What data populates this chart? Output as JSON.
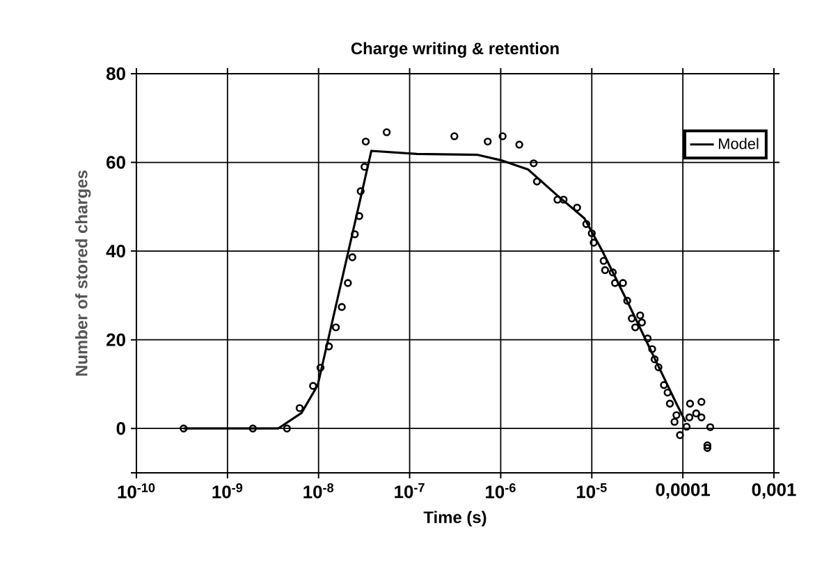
{
  "chart_data": {
    "type": "scatter",
    "title": "Charge writing & retention",
    "xlabel": "Time (s)",
    "ylabel": "Number of stored charges",
    "log": "x",
    "grid": true,
    "legend": "top right",
    "xlim": [
      1e-10,
      0.001
    ],
    "ylim": [
      -10,
      80
    ],
    "xticks": [
      {
        "value": 1e-10,
        "label": "10$^{-10}$"
      },
      {
        "value": 1e-09,
        "label": "10$^{-9}$"
      },
      {
        "value": 1e-08,
        "label": "10$^{-8}$"
      },
      {
        "value": 1e-07,
        "label": "10$^{-7}$"
      },
      {
        "value": 1e-06,
        "label": "10$^{-6}$"
      },
      {
        "value": 1e-05,
        "label": "10$^{-5}$"
      },
      {
        "value": 0.0001,
        "label": "0,0001"
      },
      {
        "value": 0.001,
        "label": "0,001"
      }
    ],
    "yticks": [
      {
        "value": -10,
        "label": null
      },
      0,
      20,
      40,
      60,
      80
    ],
    "series": [
      {
        "marker": "circle",
        "color": "#000000",
        "x": [
          3.3e-10,
          1.9e-09,
          4.5e-09,
          6.2e-09,
          8.7e-09,
          1.05e-08,
          1.3e-08,
          1.55e-08,
          1.8e-08,
          2.1e-08,
          2.35e-08,
          2.5e-08,
          2.8e-08,
          2.9e-08,
          3.2e-08,
          3.3e-08,
          5.6e-08,
          3.1e-07,
          7.2e-07,
          1.05e-06,
          1.6e-06,
          2.3e-06,
          2.5e-06,
          4.2e-06,
          4.9e-06,
          6.9e-06,
          8.7e-06,
          1e-05,
          1.05e-05,
          1.35e-05,
          1.4e-05,
          1.7e-05,
          1.8e-05,
          2.2e-05,
          2.45e-05,
          2.75e-05,
          3.4e-05,
          3.55e-05,
          3e-05,
          4.1e-05,
          4.6e-05,
          4.9e-05,
          5.4e-05,
          6.2e-05,
          6.8e-05,
          7.2e-05,
          8.5e-05,
          8.1e-05,
          9.3e-05,
          0.00011,
          0.00012,
          0.000118,
          0.00014,
          0.00016,
          0.00016,
          0.000162,
          0.000186,
          0.000186,
          0.0002
        ],
        "values": [
          0,
          0,
          0,
          4.6,
          9.6,
          13.7,
          18.5,
          22.8,
          27.4,
          32.8,
          38.6,
          43.8,
          47.9,
          53.5,
          59,
          64.7,
          66.8,
          65.9,
          64.7,
          65.9,
          64,
          59.8,
          55.7,
          51.6,
          51.6,
          49.8,
          46.1,
          44,
          41.9,
          37.8,
          35.7,
          35.2,
          32.8,
          32.8,
          28.8,
          24.8,
          25.5,
          23.9,
          22.8,
          20.3,
          17.9,
          15.6,
          13.8,
          9.8,
          8.1,
          5.6,
          3,
          1.5,
          -1.5,
          0.4,
          5.6,
          2.5,
          3.4,
          2.5,
          6,
          null,
          -4.4,
          -3.8,
          0.3
        ]
      },
      {
        "type": "line",
        "name": "Model",
        "color": "#000000",
        "x": [
          3.3e-10,
          3.6e-09,
          6.5e-09,
          9.8e-09,
          3.8e-08,
          1.2e-07,
          5.6e-07,
          1e-06,
          2e-06,
          4.1e-06,
          8.3e-06,
          1.3e-05,
          2.6e-05,
          5.4e-05,
          8.5e-05,
          0.000107
        ],
        "values": [
          0,
          0,
          3.5,
          9.8,
          62.6,
          61.9,
          61.7,
          60.5,
          58.4,
          52.7,
          47.4,
          40.1,
          27.6,
          14,
          5.6,
          1.5
        ]
      }
    ]
  }
}
